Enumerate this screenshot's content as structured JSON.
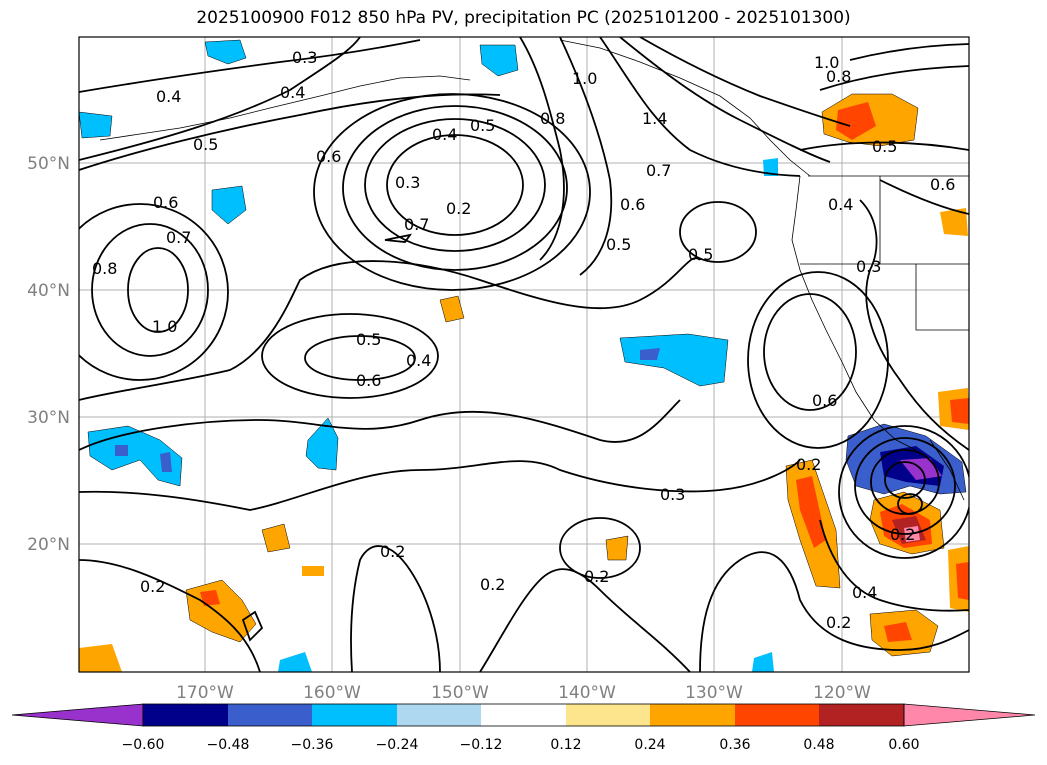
{
  "title": "2025100900 F012 850 hPa PV, precipitation PC (2025101200 - 2025101300)",
  "lat_labels": [
    "50°N",
    "40°N",
    "30°N",
    "20°N"
  ],
  "lon_labels": [
    "170°W",
    "160°W",
    "150°W",
    "140°W",
    "130°W",
    "120°W"
  ],
  "contour_labels": [
    "0.3",
    "0.4",
    "0.4",
    "0.5",
    "0.6",
    "0.4",
    "0.5",
    "0.3",
    "0.2",
    "0.7",
    "0.6",
    "0.7",
    "0.8",
    "1.0",
    "0.5",
    "0.4",
    "0.6",
    "1.0",
    "0.8",
    "1.4",
    "0.7",
    "0.6",
    "0.5",
    "0.5",
    "1.0",
    "0.8",
    "0.5",
    "0.6",
    "0.4",
    "0.3",
    "0.6",
    "0.3",
    "0.2",
    "0.2",
    "0.2",
    "0.2",
    "0.2",
    "0.4",
    "0.2",
    "0.2"
  ],
  "colorbar": {
    "ticks": [
      "−0.60",
      "−0.48",
      "−0.36",
      "−0.24",
      "−0.12",
      "0.12",
      "0.24",
      "0.36",
      "0.48",
      "0.60"
    ],
    "colors": [
      "#9932cc",
      "#00008b",
      "#3a5fcd",
      "#00bfff",
      "#add8f0",
      "#ffffff",
      "#fce58c",
      "#ffa500",
      "#ff4500",
      "#b22222",
      "#ff88aa"
    ]
  }
}
